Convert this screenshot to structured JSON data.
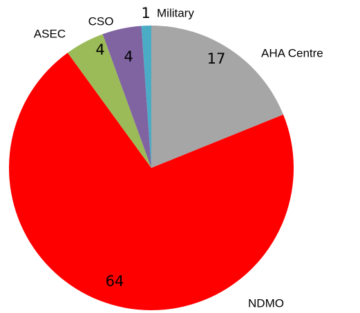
{
  "chart_data": {
    "type": "pie",
    "categories": [
      "AHA Centre",
      "NDMO",
      "ASEC",
      "CSO",
      "Military"
    ],
    "values": [
      17,
      64,
      4,
      4,
      1
    ],
    "colors": [
      "#a6a6a6",
      "#ff0000",
      "#9bbb59",
      "#8064a2",
      "#4bacc6"
    ]
  }
}
